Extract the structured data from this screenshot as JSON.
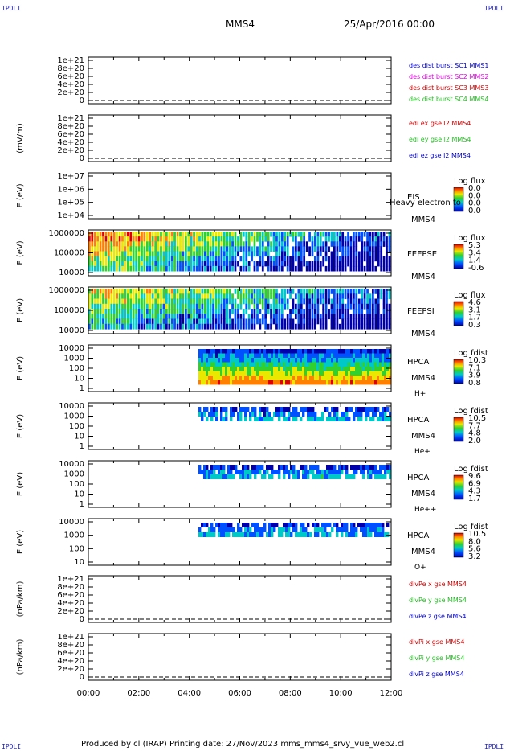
{
  "corner_label": "IPDLI",
  "header": {
    "spacecraft": "MMS4",
    "date": "25/Apr/2016 00:00"
  },
  "footer": "Produced by cl (IRAP)   Printing date: 27/Nov/2023   mms_mms4_srvy_vue_web2.cl",
  "colors": {
    "red": "#cc0000",
    "magenta": "#dd00dd",
    "green": "#22bb22",
    "blue": "#0000cc",
    "black": "#000000",
    "dashed": "#000000"
  },
  "chart_data": [
    {
      "type": "line",
      "ylabel": "",
      "ticks": [
        "1e+21",
        "8e+20",
        "6e+20",
        "4e+20",
        "2e+20",
        "0"
      ],
      "series": [
        {
          "name": "des dist burst SC1 MMS1",
          "color": "blue"
        },
        {
          "name": "des dist burst SC2 MMS2",
          "color": "magenta"
        },
        {
          "name": "des dist burst SC3 MMS3",
          "color": "red"
        },
        {
          "name": "des dist burst SC4 MMS4",
          "color": "green"
        }
      ],
      "dashed_zero": true
    },
    {
      "type": "line",
      "ylabel": "(mV/m)",
      "ticks": [
        "1e+21",
        "8e+20",
        "6e+20",
        "4e+20",
        "2e+20",
        "0"
      ],
      "series": [
        {
          "name": "edi ex gse l2 MMS4",
          "color": "red"
        },
        {
          "name": "edi ey gse l2 MMS4",
          "color": "green"
        },
        {
          "name": "edi ez gse l2 MMS4",
          "color": "blue"
        }
      ],
      "dashed_zero": true
    },
    {
      "type": "heatmap",
      "ylabel": "E (eV)",
      "ticks": [
        "1e+07",
        "1e+06",
        "1e+05",
        "1e+04"
      ],
      "instrument": [
        "EIS",
        "MMS4"
      ],
      "subtitle": "Heavy electron to",
      "colorbar": {
        "title": "Log flux",
        "labels": [
          "0.0",
          "0.0",
          "0.0",
          "0.0"
        ]
      }
    },
    {
      "type": "heatmap",
      "ylabel": "E (eV)",
      "ticks": [
        "1000000",
        "100000",
        "10000"
      ],
      "instrument": [
        "FEEPSE",
        "MMS4"
      ],
      "colorbar": {
        "title": "Log flux",
        "labels": [
          "5.3",
          "3.4",
          "1.4",
          "-0.6"
        ]
      }
    },
    {
      "type": "heatmap",
      "ylabel": "E (eV)",
      "ticks": [
        "1000000",
        "100000",
        "10000"
      ],
      "instrument": [
        "FEEPSI",
        "MMS4"
      ],
      "colorbar": {
        "title": "Log flux",
        "labels": [
          "4.6",
          "3.1",
          "1.7",
          "0.3"
        ]
      }
    },
    {
      "type": "heatmap",
      "ylabel": "E (eV)",
      "ticks": [
        "10000",
        "1000",
        "100",
        "10",
        "1"
      ],
      "instrument": [
        "HPCA",
        "MMS4"
      ],
      "species": "H+",
      "colorbar": {
        "title": "Log fdist",
        "labels": [
          "10.3",
          "7.1",
          "3.9",
          "0.8"
        ]
      }
    },
    {
      "type": "heatmap",
      "ylabel": "E (eV)",
      "ticks": [
        "10000",
        "1000",
        "100",
        "10",
        "1"
      ],
      "instrument": [
        "HPCA",
        "MMS4"
      ],
      "species": "He+",
      "colorbar": {
        "title": "Log fdist",
        "labels": [
          "10.5",
          "7.7",
          "4.8",
          "2.0"
        ]
      }
    },
    {
      "type": "heatmap",
      "ylabel": "E (eV)",
      "ticks": [
        "10000",
        "1000",
        "100",
        "10",
        "1"
      ],
      "instrument": [
        "HPCA",
        "MMS4"
      ],
      "species": "He++",
      "colorbar": {
        "title": "Log fdist",
        "labels": [
          "9.6",
          "6.9",
          "4.3",
          "1.7"
        ]
      }
    },
    {
      "type": "heatmap",
      "ylabel": "E (eV)",
      "ticks": [
        "10000",
        "1000",
        "100",
        "10"
      ],
      "instrument": [
        "HPCA",
        "MMS4"
      ],
      "species": "O+",
      "colorbar": {
        "title": "Log fdist",
        "labels": [
          "10.5",
          "8.0",
          "5.6",
          "3.2"
        ]
      }
    },
    {
      "type": "line",
      "ylabel": "(nPa/km)",
      "ticks": [
        "1e+21",
        "8e+20",
        "6e+20",
        "4e+20",
        "2e+20",
        "0"
      ],
      "series": [
        {
          "name": "divPe x gse MMS4",
          "color": "red"
        },
        {
          "name": "divPe y gse MMS4",
          "color": "green"
        },
        {
          "name": "divPe z gse MMS4",
          "color": "blue"
        }
      ],
      "dashed_zero": true
    },
    {
      "type": "line",
      "ylabel": "(nPa/km)",
      "ticks": [
        "1e+21",
        "8e+20",
        "6e+20",
        "4e+20",
        "2e+20",
        "0"
      ],
      "series": [
        {
          "name": "divPi x gse MMS4",
          "color": "red"
        },
        {
          "name": "divPi y gse MMS4",
          "color": "green"
        },
        {
          "name": "divPi z gse MMS4",
          "color": "blue"
        }
      ],
      "dashed_zero": true
    }
  ],
  "x_axis": {
    "ticks": [
      "00:00",
      "02:00",
      "04:00",
      "06:00",
      "08:00",
      "10:00",
      "12:00"
    ]
  }
}
